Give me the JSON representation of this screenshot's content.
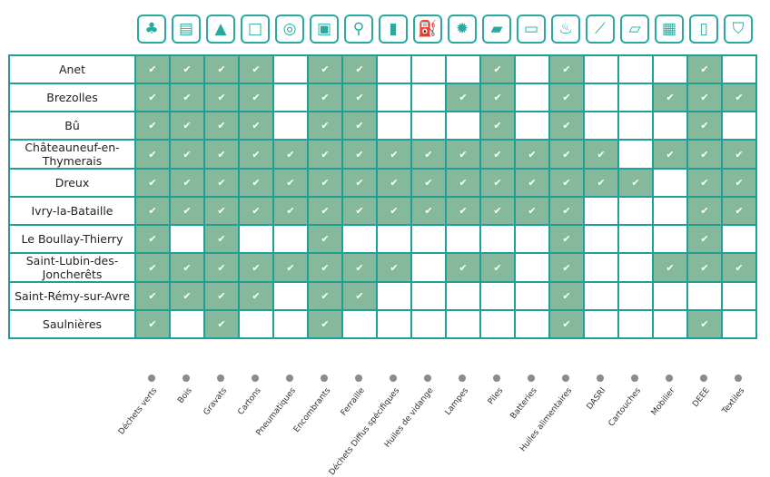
{
  "columns": [
    {
      "label": "Déchets verts",
      "icon": "tree-icon",
      "glyph": "♣"
    },
    {
      "label": "Bois",
      "icon": "pallet-icon",
      "glyph": "▤"
    },
    {
      "label": "Gravats",
      "icon": "rubble-icon",
      "glyph": "▲"
    },
    {
      "label": "Cartons",
      "icon": "box-icon",
      "glyph": "□"
    },
    {
      "label": "Pneumatiques",
      "icon": "tire-icon",
      "glyph": "◎"
    },
    {
      "label": "Encombrants",
      "icon": "furniture-icon",
      "glyph": "▣"
    },
    {
      "label": "Ferraille",
      "icon": "bicycle-icon",
      "glyph": "⚲"
    },
    {
      "label": "Déchets Diffus spécifiques",
      "icon": "spray-can-icon",
      "glyph": "▮"
    },
    {
      "label": "Huiles de vidange",
      "icon": "oil-can-icon",
      "glyph": "⛽"
    },
    {
      "label": "Lampes",
      "icon": "lamp-icon",
      "glyph": "✹"
    },
    {
      "label": "Piles",
      "icon": "battery-cell-icon",
      "glyph": "▰"
    },
    {
      "label": "Batteries",
      "icon": "car-battery-icon",
      "glyph": "▭"
    },
    {
      "label": "Huiles alimentaires",
      "icon": "cooking-pot-icon",
      "glyph": "♨"
    },
    {
      "label": "DASRI",
      "icon": "syringe-icon",
      "glyph": "⟋"
    },
    {
      "label": "Cartouches",
      "icon": "cartridge-icon",
      "glyph": "▱"
    },
    {
      "label": "Mobilier",
      "icon": "cabinet-icon",
      "glyph": "▦"
    },
    {
      "label": "DEEE",
      "icon": "fridge-icon",
      "glyph": "▯"
    },
    {
      "label": "Textiles",
      "icon": "tshirt-icon",
      "glyph": "⛉"
    }
  ],
  "check_symbol": "✔",
  "colors": {
    "accent": "#2aaa9e",
    "filled": "#86b99c"
  },
  "rows": [
    {
      "name": "Anet",
      "values": [
        1,
        1,
        1,
        1,
        0,
        1,
        1,
        0,
        0,
        0,
        1,
        0,
        1,
        0,
        0,
        0,
        1,
        0
      ]
    },
    {
      "name": "Brezolles",
      "values": [
        1,
        1,
        1,
        1,
        0,
        1,
        1,
        0,
        0,
        1,
        1,
        0,
        1,
        0,
        0,
        1,
        1,
        1
      ]
    },
    {
      "name": "Bû",
      "values": [
        1,
        1,
        1,
        1,
        0,
        1,
        1,
        0,
        0,
        0,
        1,
        0,
        1,
        0,
        0,
        0,
        1,
        0
      ]
    },
    {
      "name": "Châteauneuf-en-Thymerais",
      "values": [
        1,
        1,
        1,
        1,
        1,
        1,
        1,
        1,
        1,
        1,
        1,
        1,
        1,
        1,
        0,
        1,
        1,
        1
      ]
    },
    {
      "name": "Dreux",
      "values": [
        1,
        1,
        1,
        1,
        1,
        1,
        1,
        1,
        1,
        1,
        1,
        1,
        1,
        1,
        1,
        0,
        1,
        1
      ]
    },
    {
      "name": "Ivry-la-Bataille",
      "values": [
        1,
        1,
        1,
        1,
        1,
        1,
        1,
        1,
        1,
        1,
        1,
        1,
        1,
        0,
        0,
        0,
        1,
        1
      ]
    },
    {
      "name": "Le Boullay-Thierry",
      "values": [
        1,
        0,
        1,
        0,
        0,
        1,
        0,
        0,
        0,
        0,
        0,
        0,
        1,
        0,
        0,
        0,
        1,
        0
      ]
    },
    {
      "name": "Saint-Lubin-des-Joncherêts",
      "values": [
        1,
        1,
        1,
        1,
        1,
        1,
        1,
        1,
        0,
        1,
        1,
        0,
        1,
        0,
        0,
        1,
        1,
        1
      ]
    },
    {
      "name": "Saint-Rémy-sur-Avre",
      "values": [
        1,
        1,
        1,
        1,
        0,
        1,
        1,
        0,
        0,
        0,
        0,
        0,
        1,
        0,
        0,
        0,
        0,
        0
      ]
    },
    {
      "name": "Saulnières",
      "values": [
        1,
        0,
        1,
        0,
        0,
        1,
        0,
        0,
        0,
        0,
        0,
        0,
        1,
        0,
        0,
        0,
        1,
        0
      ]
    }
  ]
}
